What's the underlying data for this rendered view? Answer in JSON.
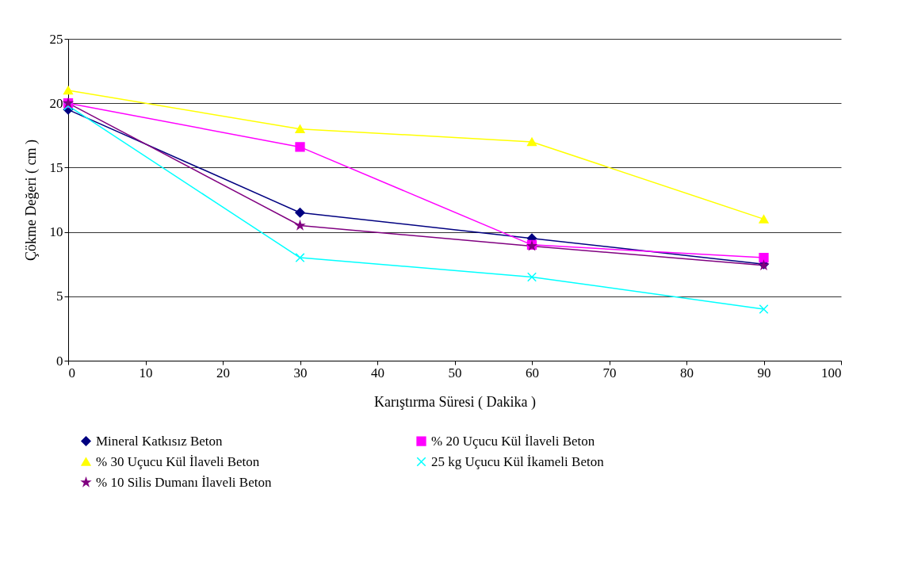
{
  "chart_data": {
    "type": "line",
    "xlabel": "Karıştırma Süresi ( Dakika )",
    "ylabel": "Çökme Değeri ( cm )",
    "x": [
      0,
      30,
      60,
      90
    ],
    "xlim": [
      0,
      100
    ],
    "xticks": [
      0,
      10,
      20,
      30,
      40,
      50,
      60,
      70,
      80,
      90,
      100
    ],
    "ylim": [
      0,
      25
    ],
    "yticks": [
      0,
      5,
      10,
      15,
      20,
      25
    ],
    "grid": "y",
    "legend": "bottom",
    "series": [
      {
        "name": "Mineral Katkısız Beton",
        "color": "#000080",
        "marker": "diamond",
        "values": [
          19.5,
          11.5,
          9.5,
          7.5
        ]
      },
      {
        "name": "% 20 Uçucu Kül İlaveli Beton",
        "color": "#ff00ff",
        "marker": "square",
        "values": [
          20,
          16.6,
          9,
          8
        ]
      },
      {
        "name": "% 30 Uçucu Kül İlaveli Beton",
        "color": "#ffff00",
        "marker": "triangle",
        "values": [
          21,
          18,
          17,
          11
        ]
      },
      {
        "name": "25 kg Uçucu Kül İkameli Beton",
        "color": "#00ffff",
        "marker": "cross",
        "values": [
          19.8,
          8,
          6.5,
          4
        ]
      },
      {
        "name": "% 10 Silis Dumanı İlaveli Beton",
        "color": "#800080",
        "marker": "star",
        "values": [
          20,
          10.5,
          8.9,
          7.4
        ]
      }
    ]
  }
}
